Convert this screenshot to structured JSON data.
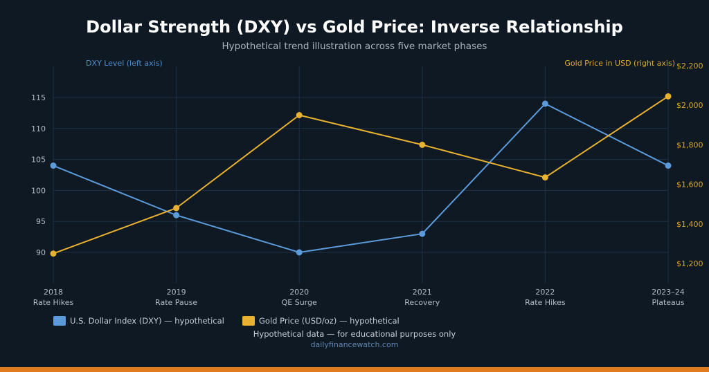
{
  "chart_data": {
    "type": "line",
    "title": "Dollar Strength (DXY) vs Gold Price: Inverse Relationship",
    "subtitle": "Hypothetical trend illustration across five market phases",
    "categories": [
      {
        "year": "2018",
        "phase": "Rate Hikes"
      },
      {
        "year": "2019",
        "phase": "Rate Pause"
      },
      {
        "year": "2020",
        "phase": "QE Surge"
      },
      {
        "year": "2021",
        "phase": "Recovery"
      },
      {
        "year": "2022",
        "phase": "Rate Hikes"
      },
      {
        "year": "2023–24",
        "phase": "Plateaus"
      }
    ],
    "left_axis": {
      "label": "DXY Level (left axis)",
      "ylim": [
        85,
        120
      ],
      "ticks": [
        90,
        95,
        100,
        105,
        110,
        115
      ]
    },
    "right_axis": {
      "label": "Gold Price in USD (right axis)",
      "ylim": [
        1100,
        2200
      ],
      "ticks": [
        1200,
        1400,
        1600,
        1800,
        2000,
        2200
      ],
      "tick_labels": [
        "$1,200",
        "$1,400",
        "$1,600",
        "$1,800",
        "$2,000",
        "$2,200"
      ]
    },
    "series": [
      {
        "name": "U.S. Dollar Index (DXY) — hypothetical",
        "axis": "left",
        "color": "#5b9bdc",
        "values": [
          104,
          96,
          90,
          93,
          114,
          104
        ]
      },
      {
        "name": "Gold Price (USD/oz) — hypothetical",
        "axis": "right",
        "color": "#e8b12f",
        "values": [
          1250,
          1480,
          1950,
          1800,
          1635,
          2045
        ]
      }
    ],
    "grid": true,
    "legend_position": "bottom"
  },
  "footer": {
    "note": "Hypothetical data — for educational purposes only",
    "source": "dailyfinancewatch.com"
  },
  "colors": {
    "background": "#0f1923",
    "grid": "#1e3048",
    "accent_bar": "#e07b1f"
  }
}
